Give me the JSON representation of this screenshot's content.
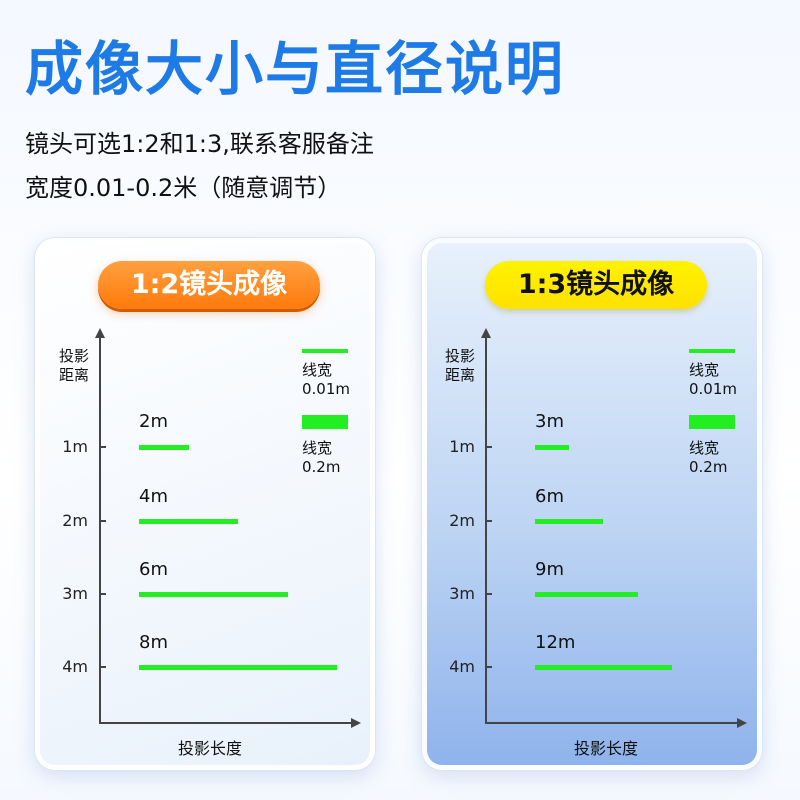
{
  "title": "成像大小与直径说明",
  "subtitle_lines": [
    "镜头可选1:2和1:3,联系客服备注",
    "宽度0.01-0.2米（随意调节）"
  ],
  "panels": [
    {
      "badge": "1:2镜头成像",
      "badge_style": "orange",
      "y_axis_title": "投影\n距离",
      "x_axis_title": "投影长度",
      "legend": [
        {
          "label": "线宽\n0.01m",
          "width_m": 0.01
        },
        {
          "label": "线宽\n0.2m",
          "width_m": 0.2
        }
      ],
      "rows": [
        {
          "distance": "1m",
          "size": "2m",
          "size_m": 2
        },
        {
          "distance": "2m",
          "size": "4m",
          "size_m": 4
        },
        {
          "distance": "3m",
          "size": "6m",
          "size_m": 6
        },
        {
          "distance": "4m",
          "size": "8m",
          "size_m": 8
        }
      ]
    },
    {
      "badge": "1:3镜头成像",
      "badge_style": "yellow",
      "y_axis_title": "投影\n距离",
      "x_axis_title": "投影长度",
      "legend": [
        {
          "label": "线宽\n0.01m",
          "width_m": 0.01
        },
        {
          "label": "线宽\n0.2m",
          "width_m": 0.2
        }
      ],
      "rows": [
        {
          "distance": "1m",
          "size": "3m",
          "size_m": 3
        },
        {
          "distance": "2m",
          "size": "6m",
          "size_m": 6
        },
        {
          "distance": "3m",
          "size": "9m",
          "size_m": 9
        },
        {
          "distance": "4m",
          "size": "12m",
          "size_m": 12
        }
      ]
    }
  ],
  "colors": {
    "title": "#1e7be6",
    "line": "#22ee22",
    "badge_orange": "#ff8a1a",
    "badge_yellow": "#ffee00",
    "right_panel_bottom": "#8fb3ec"
  }
}
